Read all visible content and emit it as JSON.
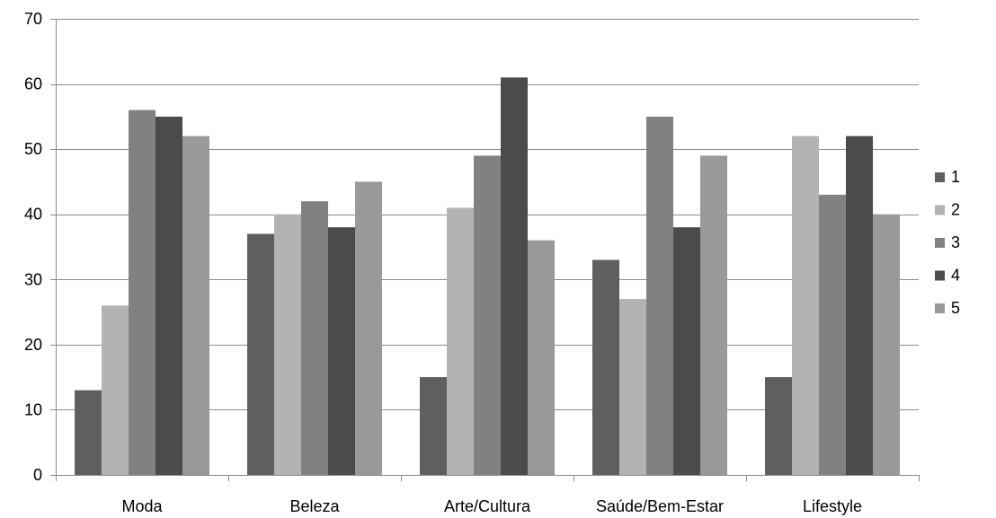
{
  "chart_data": {
    "type": "bar",
    "title": "",
    "xlabel": "",
    "ylabel": "",
    "categories": [
      "Moda",
      "Beleza",
      "Arte/Cultura",
      "Saúde/Bem-Estar",
      "Lifestyle"
    ],
    "series": [
      {
        "name": "1",
        "color": "#5f5f5f",
        "values": [
          13,
          37,
          15,
          33,
          15
        ]
      },
      {
        "name": "2",
        "color": "#b3b3b3",
        "values": [
          26,
          40,
          41,
          27,
          52
        ]
      },
      {
        "name": "3",
        "color": "#818181",
        "values": [
          56,
          42,
          49,
          55,
          43
        ]
      },
      {
        "name": "4",
        "color": "#4b4b4b",
        "values": [
          55,
          38,
          61,
          38,
          52
        ]
      },
      {
        "name": "5",
        "color": "#999999",
        "values": [
          52,
          45,
          36,
          49,
          40
        ]
      }
    ],
    "ylim": [
      0,
      70
    ],
    "yticks": [
      0,
      10,
      20,
      30,
      40,
      50,
      60,
      70
    ],
    "grid": true,
    "legend_position": "right"
  }
}
